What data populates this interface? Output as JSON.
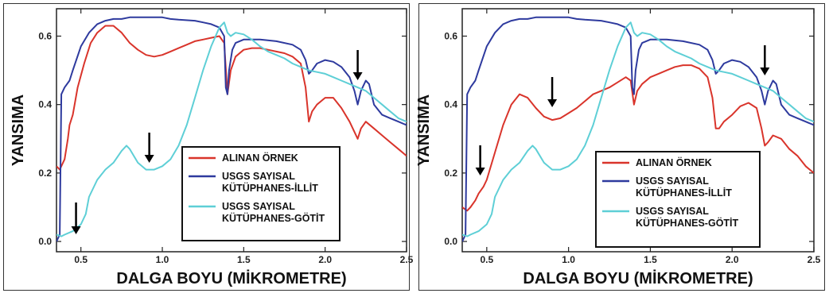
{
  "chart_data": [
    {
      "type": "line",
      "xlabel": "DALGA BOYU (MİKROMETRE)",
      "ylabel": "YANSIMA",
      "xlim": [
        0.35,
        2.5
      ],
      "ylim": [
        -0.03,
        0.68
      ],
      "xticks": [
        0.5,
        1.0,
        1.5,
        2.0,
        2.5
      ],
      "xtick_labels": [
        "0.5",
        "1.0",
        "1.5",
        "2.0",
        "2.5"
      ],
      "yticks": [
        0.0,
        0.2,
        0.4,
        0.6
      ],
      "ytick_labels": [
        "0.0",
        "0.2",
        "0.4",
        "0.6"
      ],
      "legend": [
        "ALINAN ÖRNEK",
        "USGS SAYISAL KÜTÜPHANES-İLLİT",
        "USGS SAYISAL KÜTÜPHANES-GÖTİT"
      ],
      "legend_lines": [
        [
          "ALINAN ÖRNEK"
        ],
        [
          "USGS SAYISAL",
          "KÜTÜPHANES-İLLİT"
        ],
        [
          "USGS SAYISAL",
          "KÜTÜPHANES-GÖTİT"
        ]
      ],
      "legend_position": "lower-right",
      "arrows_at_x": [
        0.47,
        0.92,
        2.2
      ],
      "series": [
        {
          "color": "#d9342b",
          "x": [
            0.35,
            0.37,
            0.4,
            0.42,
            0.43,
            0.45,
            0.48,
            0.52,
            0.56,
            0.6,
            0.65,
            0.7,
            0.75,
            0.8,
            0.85,
            0.9,
            0.95,
            1.0,
            1.05,
            1.1,
            1.15,
            1.2,
            1.25,
            1.3,
            1.35,
            1.38,
            1.4,
            1.42,
            1.45,
            1.5,
            1.55,
            1.6,
            1.65,
            1.7,
            1.75,
            1.8,
            1.85,
            1.88,
            1.9,
            1.92,
            1.95,
            2.0,
            2.05,
            2.1,
            2.15,
            2.2,
            2.22,
            2.25,
            2.3,
            2.35,
            2.4,
            2.45,
            2.5
          ],
          "y": [
            0.22,
            0.21,
            0.24,
            0.3,
            0.34,
            0.37,
            0.45,
            0.52,
            0.58,
            0.61,
            0.63,
            0.63,
            0.61,
            0.58,
            0.56,
            0.545,
            0.54,
            0.545,
            0.555,
            0.565,
            0.575,
            0.585,
            0.59,
            0.595,
            0.6,
            0.58,
            0.43,
            0.5,
            0.54,
            0.56,
            0.565,
            0.565,
            0.56,
            0.555,
            0.55,
            0.54,
            0.52,
            0.45,
            0.35,
            0.38,
            0.4,
            0.42,
            0.42,
            0.39,
            0.35,
            0.3,
            0.33,
            0.35,
            0.33,
            0.31,
            0.29,
            0.27,
            0.25
          ]
        },
        {
          "color": "#2e3a9e",
          "x": [
            0.35,
            0.37,
            0.38,
            0.4,
            0.43,
            0.45,
            0.5,
            0.55,
            0.6,
            0.65,
            0.7,
            0.75,
            0.8,
            0.9,
            1.0,
            1.05,
            1.1,
            1.2,
            1.25,
            1.3,
            1.35,
            1.38,
            1.39,
            1.4,
            1.41,
            1.43,
            1.45,
            1.5,
            1.55,
            1.6,
            1.7,
            1.8,
            1.85,
            1.88,
            1.9,
            1.92,
            1.95,
            2.0,
            2.05,
            2.1,
            2.15,
            2.18,
            2.2,
            2.22,
            2.25,
            2.27,
            2.3,
            2.35,
            2.4,
            2.45,
            2.5
          ],
          "y": [
            0.0,
            0.02,
            0.43,
            0.45,
            0.47,
            0.5,
            0.57,
            0.61,
            0.635,
            0.645,
            0.65,
            0.65,
            0.655,
            0.655,
            0.655,
            0.65,
            0.648,
            0.645,
            0.64,
            0.635,
            0.625,
            0.6,
            0.45,
            0.43,
            0.5,
            0.56,
            0.58,
            0.59,
            0.59,
            0.59,
            0.585,
            0.575,
            0.56,
            0.53,
            0.49,
            0.5,
            0.52,
            0.53,
            0.525,
            0.51,
            0.48,
            0.44,
            0.4,
            0.44,
            0.47,
            0.46,
            0.4,
            0.37,
            0.36,
            0.35,
            0.34
          ]
        },
        {
          "color": "#5ecfd6",
          "x": [
            0.35,
            0.38,
            0.4,
            0.45,
            0.5,
            0.53,
            0.55,
            0.6,
            0.65,
            0.7,
            0.75,
            0.78,
            0.8,
            0.85,
            0.9,
            0.95,
            1.0,
            1.05,
            1.1,
            1.15,
            1.2,
            1.25,
            1.3,
            1.35,
            1.38,
            1.4,
            1.42,
            1.45,
            1.5,
            1.55,
            1.6,
            1.65,
            1.7,
            1.75,
            1.8,
            1.85,
            1.9,
            1.95,
            2.0,
            2.05,
            2.1,
            2.15,
            2.2,
            2.25,
            2.3,
            2.35,
            2.4,
            2.45,
            2.5
          ],
          "y": [
            0.02,
            0.015,
            0.02,
            0.03,
            0.05,
            0.08,
            0.13,
            0.18,
            0.21,
            0.23,
            0.265,
            0.28,
            0.27,
            0.23,
            0.21,
            0.21,
            0.22,
            0.24,
            0.28,
            0.34,
            0.42,
            0.5,
            0.57,
            0.625,
            0.64,
            0.61,
            0.6,
            0.61,
            0.605,
            0.59,
            0.57,
            0.555,
            0.545,
            0.535,
            0.52,
            0.51,
            0.5,
            0.495,
            0.49,
            0.48,
            0.47,
            0.46,
            0.45,
            0.44,
            0.42,
            0.4,
            0.38,
            0.36,
            0.35
          ]
        }
      ]
    },
    {
      "type": "line",
      "xlabel": "DALGA BOYU (MİKROMETRE)",
      "ylabel": "YANSIMA",
      "xlim": [
        0.35,
        2.5
      ],
      "ylim": [
        -0.03,
        0.68
      ],
      "xticks": [
        0.5,
        1.0,
        1.5,
        2.0,
        2.5
      ],
      "xtick_labels": [
        "0.5",
        "1.0",
        "1.5",
        "2.0",
        "2.5"
      ],
      "yticks": [
        0.0,
        0.2,
        0.4,
        0.6
      ],
      "ytick_labels": [
        "0.0",
        "0.2",
        "0.4",
        "0.6"
      ],
      "legend": [
        "ALINAN ÖRNEK",
        "USGS SAYISAL KÜTÜPHANES-İLLİT",
        "USGS SAYISAL KÜTÜPHANES-GÖTİT"
      ],
      "legend_lines": [
        [
          "ALINAN ÖRNEK"
        ],
        [
          "USGS SAYISAL",
          "KÜTÜPHANES-İLLİT"
        ],
        [
          "USGS SAYISAL",
          "KÜTÜPHANES-GÖTİT"
        ]
      ],
      "legend_position": "lower-right",
      "arrows_at_x": [
        0.46,
        0.9,
        2.2
      ],
      "series": [
        {
          "color": "#d9342b",
          "x": [
            0.35,
            0.38,
            0.4,
            0.43,
            0.45,
            0.48,
            0.5,
            0.55,
            0.6,
            0.65,
            0.7,
            0.75,
            0.8,
            0.85,
            0.9,
            0.95,
            1.0,
            1.05,
            1.1,
            1.15,
            1.2,
            1.25,
            1.3,
            1.35,
            1.38,
            1.4,
            1.42,
            1.45,
            1.5,
            1.55,
            1.6,
            1.65,
            1.7,
            1.75,
            1.8,
            1.85,
            1.88,
            1.9,
            1.92,
            1.95,
            2.0,
            2.05,
            2.1,
            2.15,
            2.18,
            2.2,
            2.22,
            2.25,
            2.3,
            2.35,
            2.4,
            2.45,
            2.5
          ],
          "y": [
            0.1,
            0.09,
            0.1,
            0.12,
            0.14,
            0.16,
            0.18,
            0.26,
            0.34,
            0.4,
            0.43,
            0.42,
            0.39,
            0.365,
            0.355,
            0.36,
            0.375,
            0.39,
            0.41,
            0.43,
            0.44,
            0.45,
            0.465,
            0.48,
            0.47,
            0.4,
            0.44,
            0.46,
            0.48,
            0.49,
            0.5,
            0.51,
            0.515,
            0.515,
            0.505,
            0.48,
            0.42,
            0.33,
            0.33,
            0.35,
            0.37,
            0.395,
            0.405,
            0.39,
            0.33,
            0.28,
            0.29,
            0.31,
            0.3,
            0.27,
            0.25,
            0.22,
            0.2
          ]
        },
        {
          "color": "#2e3a9e",
          "x": [
            0.35,
            0.37,
            0.38,
            0.4,
            0.43,
            0.45,
            0.5,
            0.55,
            0.6,
            0.65,
            0.7,
            0.75,
            0.8,
            0.9,
            1.0,
            1.05,
            1.1,
            1.2,
            1.25,
            1.3,
            1.35,
            1.38,
            1.39,
            1.4,
            1.41,
            1.43,
            1.45,
            1.5,
            1.55,
            1.6,
            1.7,
            1.8,
            1.85,
            1.88,
            1.9,
            1.92,
            1.95,
            2.0,
            2.05,
            2.1,
            2.15,
            2.18,
            2.2,
            2.22,
            2.25,
            2.27,
            2.3,
            2.35,
            2.4,
            2.45,
            2.5
          ],
          "y": [
            0.0,
            0.02,
            0.43,
            0.45,
            0.47,
            0.5,
            0.57,
            0.61,
            0.635,
            0.645,
            0.65,
            0.65,
            0.655,
            0.655,
            0.655,
            0.65,
            0.648,
            0.645,
            0.64,
            0.635,
            0.625,
            0.6,
            0.45,
            0.43,
            0.5,
            0.56,
            0.58,
            0.59,
            0.59,
            0.59,
            0.585,
            0.575,
            0.56,
            0.53,
            0.49,
            0.5,
            0.52,
            0.53,
            0.525,
            0.51,
            0.48,
            0.44,
            0.4,
            0.44,
            0.47,
            0.46,
            0.4,
            0.37,
            0.36,
            0.35,
            0.34
          ]
        },
        {
          "color": "#5ecfd6",
          "x": [
            0.35,
            0.38,
            0.4,
            0.45,
            0.5,
            0.53,
            0.55,
            0.6,
            0.65,
            0.7,
            0.75,
            0.78,
            0.8,
            0.85,
            0.9,
            0.95,
            1.0,
            1.05,
            1.1,
            1.15,
            1.2,
            1.25,
            1.3,
            1.35,
            1.38,
            1.4,
            1.42,
            1.45,
            1.5,
            1.55,
            1.6,
            1.65,
            1.7,
            1.75,
            1.8,
            1.85,
            1.9,
            1.95,
            2.0,
            2.05,
            2.1,
            2.15,
            2.2,
            2.25,
            2.3,
            2.35,
            2.4,
            2.45,
            2.5
          ],
          "y": [
            0.02,
            0.015,
            0.02,
            0.03,
            0.05,
            0.08,
            0.13,
            0.18,
            0.21,
            0.23,
            0.265,
            0.28,
            0.27,
            0.23,
            0.21,
            0.21,
            0.22,
            0.24,
            0.28,
            0.34,
            0.42,
            0.5,
            0.57,
            0.625,
            0.64,
            0.61,
            0.6,
            0.61,
            0.605,
            0.59,
            0.57,
            0.555,
            0.545,
            0.535,
            0.52,
            0.51,
            0.5,
            0.495,
            0.49,
            0.48,
            0.47,
            0.46,
            0.45,
            0.44,
            0.42,
            0.4,
            0.38,
            0.36,
            0.35
          ]
        }
      ]
    }
  ]
}
